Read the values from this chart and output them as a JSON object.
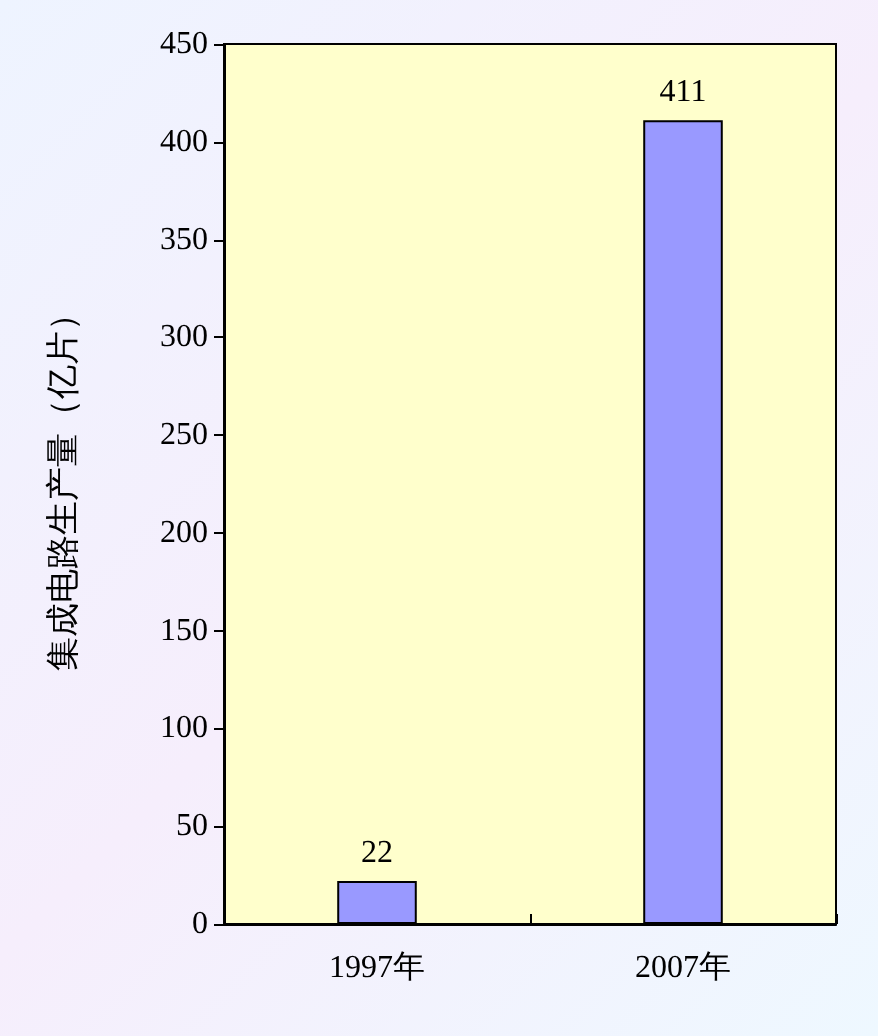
{
  "chart_data": {
    "type": "bar",
    "ylabel": "集成电路生产量（亿片）",
    "categories": [
      "1997年",
      "2007年"
    ],
    "series": [
      {
        "color": "#9999ff",
        "values": [
          22,
          411
        ]
      }
    ],
    "ylim": [
      0,
      450
    ],
    "yticks": [
      0,
      50,
      100,
      150,
      200,
      250,
      300,
      350,
      400,
      450
    ],
    "grid": false,
    "data_labels": true
  }
}
